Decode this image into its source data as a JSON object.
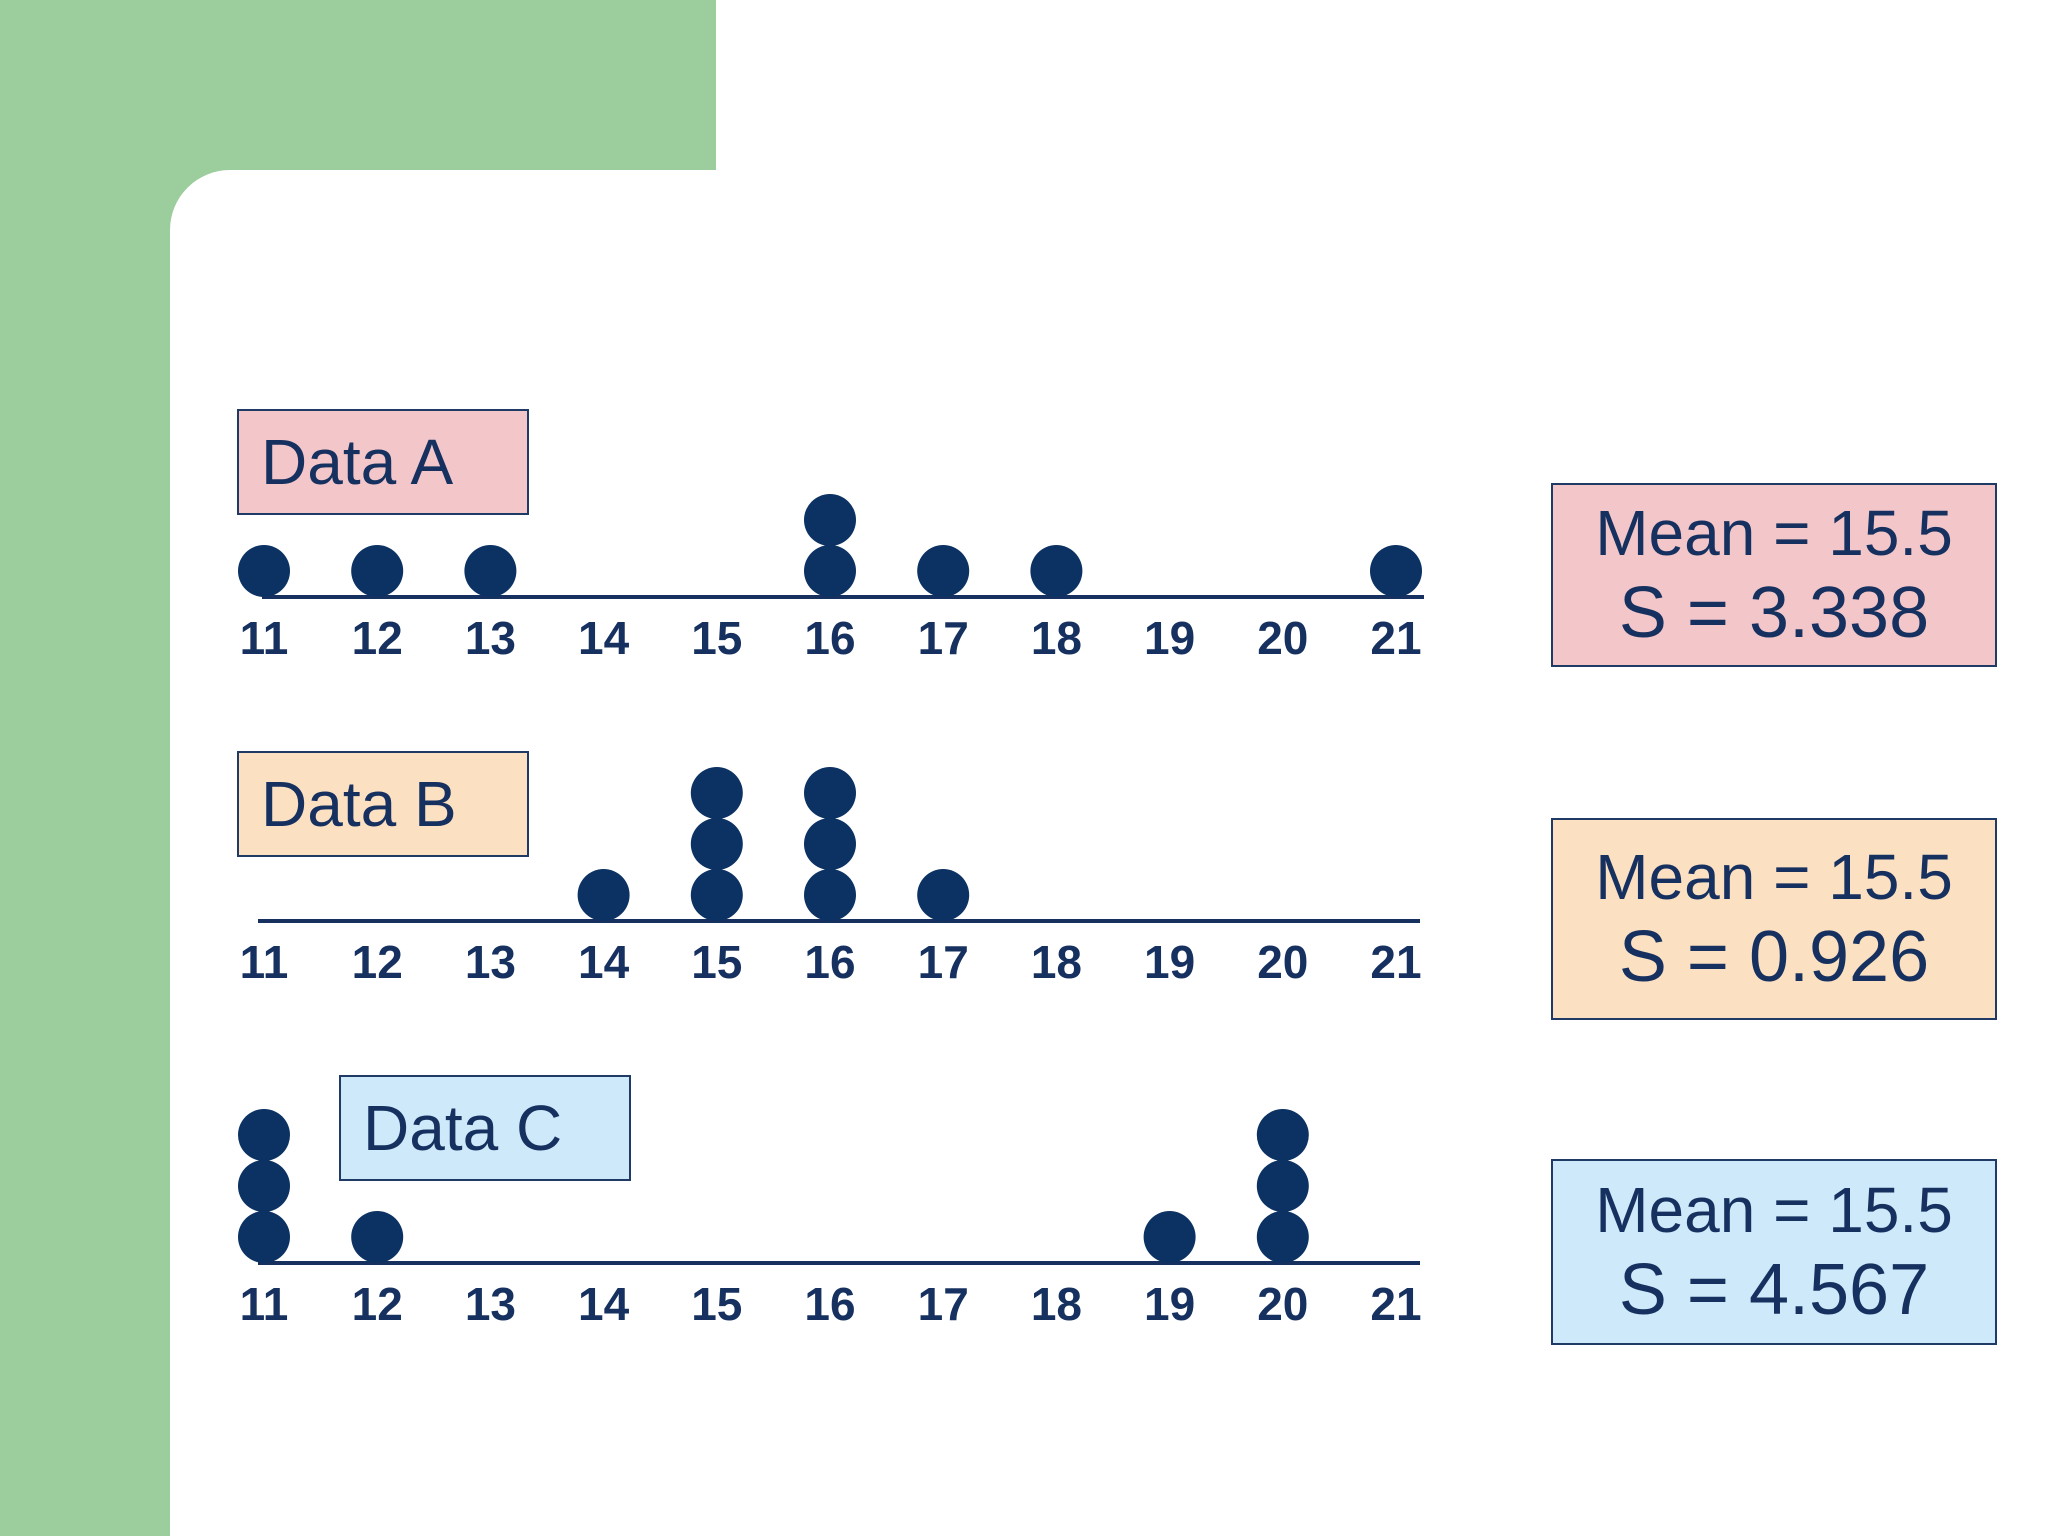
{
  "chart_data": {
    "type": "scatter",
    "subtype": "dot-plot",
    "x_ticks": [
      11,
      12,
      13,
      14,
      15,
      16,
      17,
      18,
      19,
      20,
      21
    ],
    "colors": {
      "dot": "#0c3263",
      "axis": "#16315f",
      "background_accent": "#9ccd9c"
    },
    "datasets": [
      {
        "id": "a",
        "label": "Data A",
        "label_fill": "#f3c6ca",
        "values": [
          11,
          12,
          13,
          16,
          16,
          17,
          18,
          21
        ],
        "mean_text": "Mean = 15.5",
        "s_text": "S = 3.338"
      },
      {
        "id": "b",
        "label": "Data B",
        "label_fill": "#fce0c2",
        "values": [
          14,
          15,
          15,
          15,
          16,
          16,
          16,
          17
        ],
        "mean_text": "Mean = 15.5",
        "s_text": "S = 0.926"
      },
      {
        "id": "c",
        "label": "Data C",
        "label_fill": "#cde9fa",
        "values": [
          11,
          11,
          11,
          12,
          19,
          20,
          20,
          20
        ],
        "mean_text": "Mean = 15.5",
        "s_text": "S = 4.567"
      }
    ]
  }
}
